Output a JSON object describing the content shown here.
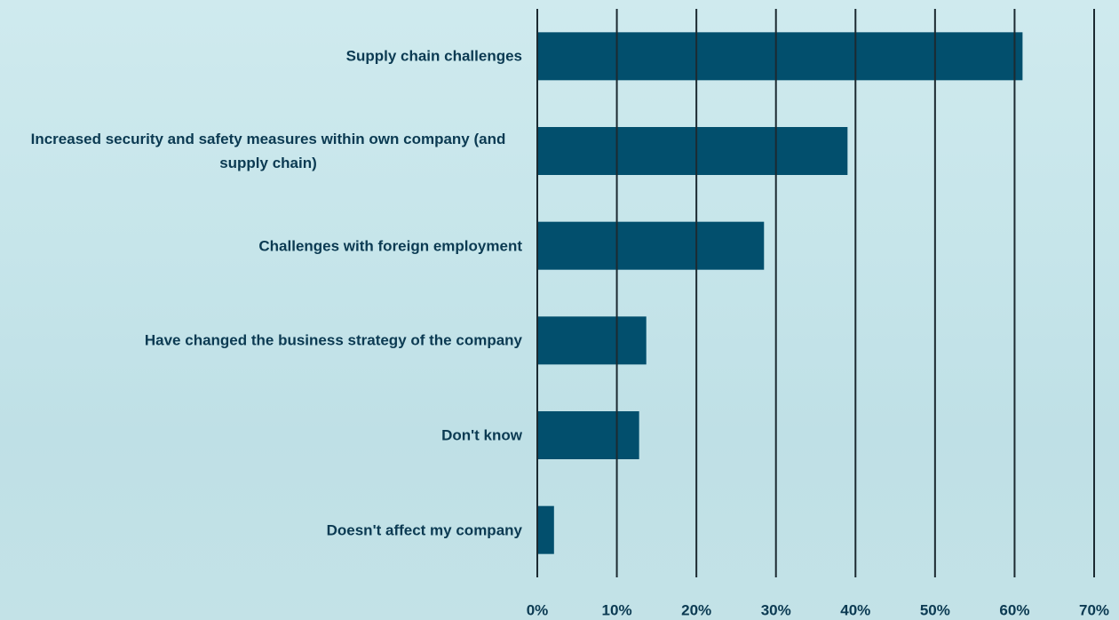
{
  "chart_data": {
    "type": "bar",
    "orientation": "horizontal",
    "categories": [
      "Supply chain challenges",
      "Increased security and safety measures within own company (and supply chain)",
      "Challenges with foreign employment",
      "Have changed the business strategy of the company",
      "Don't know",
      "Doesn't affect my company"
    ],
    "values": [
      61,
      39,
      28.5,
      13.7,
      12.8,
      2.1
    ],
    "color": "#024f6d",
    "xlim": [
      0,
      70
    ],
    "xticks": [
      {
        "value": 0,
        "label": "0%"
      },
      {
        "value": 10,
        "label": "10%"
      },
      {
        "value": 20,
        "label": "20%"
      },
      {
        "value": 30,
        "label": "30%"
      },
      {
        "value": 40,
        "label": "40%"
      },
      {
        "value": 50,
        "label": "50%"
      },
      {
        "value": 60,
        "label": "60%"
      },
      {
        "value": 70,
        "label": "70%"
      }
    ],
    "grid": true
  }
}
